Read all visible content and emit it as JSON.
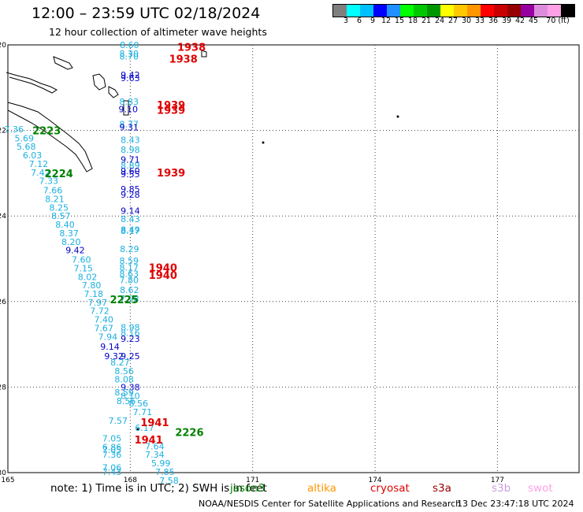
{
  "title": "12:00 – 23:59 UTC 02/18/2024",
  "subtitle": "12 hour collection of altimeter wave heights",
  "colorbar": {
    "colors": [
      "#7f7f7f",
      "#00ffff",
      "#00bfff",
      "#0000ff",
      "#1e90ff",
      "#00ff00",
      "#00c800",
      "#009600",
      "#ffff00",
      "#ffc800",
      "#ff9600",
      "#ff0000",
      "#c80000",
      "#960000",
      "#9600a0",
      "#dc8cdc",
      "#ffa0e6",
      "#000000"
    ],
    "labels": [
      "3",
      "6",
      "9",
      "12",
      "15",
      "18",
      "21",
      "24",
      "27",
      "30",
      "33",
      "36",
      "39",
      "42",
      "45",
      "70 (ft)"
    ]
  },
  "axes": {
    "lon_ticks": [
      "165",
      "168",
      "171",
      "174",
      "177"
    ],
    "lat_ticks": [
      "-20",
      "-22",
      "-24",
      "-26",
      "-28",
      "-30"
    ]
  },
  "tracks": [
    {
      "label": "1938",
      "color": "#e00000",
      "points": [
        {
          "lat": -20.0,
          "lon": 167.98,
          "val": "8.60",
          "color": "#1ab0e0"
        },
        {
          "lat": -20.2,
          "lon": 167.97,
          "val": "8.30",
          "color": "#1ab0e0"
        },
        {
          "lat": -20.27,
          "lon": 167.97,
          "val": "8.70",
          "color": "#1ab0e0"
        },
        {
          "lat": -20.7,
          "lon": 168.0,
          "val": "9.42",
          "color": "#0000c8"
        },
        {
          "lat": -20.77,
          "lon": 168.0,
          "val": "9.63",
          "color": "#0000c8"
        },
        {
          "lat": -21.33,
          "lon": 167.97,
          "val": "8.83",
          "color": "#1ab0e0"
        },
        {
          "lat": -21.5,
          "lon": 167.95,
          "val": "9.10",
          "color": "#0000c8"
        },
        {
          "lat": -21.85,
          "lon": 167.97,
          "val": "8.77",
          "color": "#1ab0e0"
        },
        {
          "lat": -21.92,
          "lon": 167.97,
          "val": "9.31",
          "color": "#0000c8"
        },
        {
          "lat": -22.22,
          "lon": 168.0,
          "val": "8.43",
          "color": "#1ab0e0"
        },
        {
          "lat": -22.45,
          "lon": 168.0,
          "val": "8.98",
          "color": "#1ab0e0"
        },
        {
          "lat": -22.68,
          "lon": 168.0,
          "val": "9.71",
          "color": "#0000c8"
        },
        {
          "lat": -22.82,
          "lon": 168.0,
          "val": "8.89",
          "color": "#1ab0e0"
        },
        {
          "lat": -22.95,
          "lon": 168.0,
          "val": "9.60",
          "color": "#0000c8"
        },
        {
          "lat": -23.02,
          "lon": 168.0,
          "val": "9.55",
          "color": "#0000c8"
        },
        {
          "lat": -23.37,
          "lon": 168.0,
          "val": "9.85",
          "color": "#0000c8"
        },
        {
          "lat": -23.5,
          "lon": 168.0,
          "val": "9.28",
          "color": "#0000c8"
        },
        {
          "lat": -23.88,
          "lon": 168.0,
          "val": "9.14",
          "color": "#0000c8"
        },
        {
          "lat": -24.07,
          "lon": 168.0,
          "val": "8.43",
          "color": "#1ab0e0"
        },
        {
          "lat": -24.32,
          "lon": 168.0,
          "val": "8.49",
          "color": "#1ab0e0"
        },
        {
          "lat": -24.35,
          "lon": 168.0,
          "val": "8.17",
          "color": "#1ab0e0"
        },
        {
          "lat": -24.77,
          "lon": 167.98,
          "val": "8.29",
          "color": "#1ab0e0"
        },
        {
          "lat": -25.05,
          "lon": 167.97,
          "val": "8.59",
          "color": "#1ab0e0"
        },
        {
          "lat": -25.2,
          "lon": 167.97,
          "val": "8.17",
          "color": "#1ab0e0"
        },
        {
          "lat": -25.35,
          "lon": 167.97,
          "val": "8.63",
          "color": "#1ab0e0"
        },
        {
          "lat": -25.5,
          "lon": 167.97,
          "val": "7.80",
          "color": "#1ab0e0"
        },
        {
          "lat": -25.73,
          "lon": 167.98,
          "val": "8.62",
          "color": "#1ab0e0"
        },
        {
          "lat": -25.93,
          "lon": 167.98,
          "val": "7.98",
          "color": "#1ab0e0"
        }
      ]
    },
    {
      "label": "1939",
      "color": "#e00000",
      "points": []
    },
    {
      "label": "2223",
      "color": "#008000",
      "points": [
        {
          "lat": -21.97,
          "lon": 165.15,
          "val": "7.36",
          "color": "#1ab0e0"
        },
        {
          "lat": -22.18,
          "lon": 165.4,
          "val": "5.69",
          "color": "#1ab0e0"
        },
        {
          "lat": -22.38,
          "lon": 165.45,
          "val": "5.68",
          "color": "#1ab0e0"
        },
        {
          "lat": -22.58,
          "lon": 165.6,
          "val": "6.03",
          "color": "#1ab0e0"
        },
        {
          "lat": -22.78,
          "lon": 165.75,
          "val": "7.12",
          "color": "#1ab0e0"
        },
        {
          "lat": -22.98,
          "lon": 165.8,
          "val": "7.42",
          "color": "#1ab0e0"
        },
        {
          "lat": -23.18,
          "lon": 166.0,
          "val": "7.33",
          "color": "#1ab0e0"
        },
        {
          "lat": -23.4,
          "lon": 166.1,
          "val": "7.66",
          "color": "#1ab0e0"
        },
        {
          "lat": -23.6,
          "lon": 166.15,
          "val": "8.21",
          "color": "#1ab0e0"
        },
        {
          "lat": -23.8,
          "lon": 166.25,
          "val": "8.25",
          "color": "#1ab0e0"
        },
        {
          "lat": -24.0,
          "lon": 166.3,
          "val": "8.57",
          "color": "#1ab0e0"
        },
        {
          "lat": -24.2,
          "lon": 166.4,
          "val": "8.40",
          "color": "#1ab0e0"
        },
        {
          "lat": -24.4,
          "lon": 166.5,
          "val": "8.37",
          "color": "#1ab0e0"
        },
        {
          "lat": -24.6,
          "lon": 166.55,
          "val": "8.20",
          "color": "#1ab0e0"
        },
        {
          "lat": -24.8,
          "lon": 166.65,
          "val": "9.42",
          "color": "#0000c8"
        },
        {
          "lat": -25.02,
          "lon": 166.8,
          "val": "7.60",
          "color": "#1ab0e0"
        },
        {
          "lat": -25.22,
          "lon": 166.85,
          "val": "7.15",
          "color": "#1ab0e0"
        },
        {
          "lat": -25.42,
          "lon": 166.95,
          "val": "8.02",
          "color": "#1ab0e0"
        },
        {
          "lat": -25.62,
          "lon": 167.05,
          "val": "7.80",
          "color": "#1ab0e0"
        },
        {
          "lat": -25.82,
          "lon": 167.1,
          "val": "7.18",
          "color": "#1ab0e0"
        },
        {
          "lat": -26.02,
          "lon": 167.2,
          "val": "7.97",
          "color": "#1ab0e0"
        },
        {
          "lat": -26.22,
          "lon": 167.25,
          "val": "7.72",
          "color": "#1ab0e0"
        },
        {
          "lat": -26.42,
          "lon": 167.35,
          "val": "7.40",
          "color": "#1ab0e0"
        },
        {
          "lat": -26.62,
          "lon": 167.35,
          "val": "7.67",
          "color": "#1ab0e0"
        },
        {
          "lat": -26.82,
          "lon": 167.45,
          "val": "7.94",
          "color": "#1ab0e0"
        }
      ]
    },
    {
      "label": "2224",
      "color": "#008000",
      "points": []
    },
    {
      "label": "2225",
      "color": "#008000",
      "points": [
        {
          "lat": -26.6,
          "lon": 168.0,
          "val": "8.98",
          "color": "#1ab0e0"
        },
        {
          "lat": -26.73,
          "lon": 168.0,
          "val": "8.16",
          "color": "#1ab0e0"
        },
        {
          "lat": -26.87,
          "lon": 168.0,
          "val": "9.23",
          "color": "#0000c8"
        },
        {
          "lat": -27.05,
          "lon": 167.5,
          "val": "9.14",
          "color": "#0000c8"
        },
        {
          "lat": -27.27,
          "lon": 167.6,
          "val": "9.32",
          "color": "#0000c8"
        },
        {
          "lat": -27.27,
          "lon": 168.0,
          "val": "9.25",
          "color": "#0000c8"
        },
        {
          "lat": -27.42,
          "lon": 167.75,
          "val": "8.27",
          "color": "#1ab0e0"
        },
        {
          "lat": -27.62,
          "lon": 167.85,
          "val": "8.56",
          "color": "#1ab0e0"
        },
        {
          "lat": -27.82,
          "lon": 167.85,
          "val": "8.08",
          "color": "#1ab0e0"
        },
        {
          "lat": -28.0,
          "lon": 168.0,
          "val": "9.38",
          "color": "#0000c8"
        },
        {
          "lat": -28.12,
          "lon": 167.85,
          "val": "8.59",
          "color": "#1ab0e0"
        },
        {
          "lat": -28.2,
          "lon": 168.0,
          "val": "8.10",
          "color": "#1ab0e0"
        },
        {
          "lat": -28.32,
          "lon": 167.9,
          "val": "8.56",
          "color": "#1ab0e0"
        },
        {
          "lat": -28.38,
          "lon": 168.2,
          "val": "8.56",
          "color": "#1ab0e0"
        },
        {
          "lat": -28.58,
          "lon": 168.3,
          "val": "7.71",
          "color": "#1ab0e0"
        }
      ]
    },
    {
      "label": "1940",
      "color": "#e00000",
      "points": []
    },
    {
      "label": "1941",
      "color": "#e00000",
      "points": [
        {
          "lat": -28.78,
          "lon": 167.7,
          "val": "7.57",
          "color": "#1ab0e0"
        },
        {
          "lat": -28.95,
          "lon": 168.35,
          "val": "6.17",
          "color": "#1ab0e0"
        },
        {
          "lat": -29.2,
          "lon": 167.55,
          "val": "7.05",
          "color": "#1ab0e0"
        },
        {
          "lat": -29.4,
          "lon": 167.55,
          "val": "6.86",
          "color": "#1ab0e0"
        },
        {
          "lat": -29.47,
          "lon": 167.55,
          "val": "7.05",
          "color": "#1ab0e0"
        },
        {
          "lat": -29.58,
          "lon": 167.55,
          "val": "7.36",
          "color": "#1ab0e0"
        },
        {
          "lat": -29.88,
          "lon": 167.55,
          "val": "7.06",
          "color": "#1ab0e0"
        },
        {
          "lat": -29.98,
          "lon": 167.55,
          "val": "7.43",
          "color": "#1ab0e0"
        }
      ]
    },
    {
      "label": "2226",
      "color": "#008000",
      "points": [
        {
          "lat": -29.38,
          "lon": 168.6,
          "val": "7.64",
          "color": "#1ab0e0"
        },
        {
          "lat": -29.58,
          "lon": 168.6,
          "val": "7.34",
          "color": "#1ab0e0"
        },
        {
          "lat": -29.78,
          "lon": 168.75,
          "val": "5.99",
          "color": "#1ab0e0"
        },
        {
          "lat": -29.98,
          "lon": 168.85,
          "val": "7.85",
          "color": "#1ab0e0"
        },
        {
          "lat": -30.18,
          "lon": 168.95,
          "val": "7.58",
          "color": "#1ab0e0"
        }
      ]
    }
  ],
  "pass_labels": [
    {
      "text": "1938",
      "lat": -20.05,
      "lon": 169.5,
      "color": "#e00000"
    },
    {
      "text": "1938",
      "lat": -20.32,
      "lon": 169.3,
      "color": "#e00000"
    },
    {
      "text": "1939",
      "lat": -21.4,
      "lon": 169.0,
      "color": "#e00000"
    },
    {
      "text": "1939",
      "lat": -21.52,
      "lon": 169.0,
      "color": "#e00000"
    },
    {
      "text": "1939",
      "lat": -22.98,
      "lon": 169.0,
      "color": "#e00000"
    },
    {
      "text": "1940",
      "lat": -25.2,
      "lon": 168.8,
      "color": "#e00000"
    },
    {
      "text": "1940",
      "lat": -25.38,
      "lon": 168.8,
      "color": "#e00000"
    },
    {
      "text": "1941",
      "lat": -28.82,
      "lon": 168.6,
      "color": "#e00000"
    },
    {
      "text": "1941",
      "lat": -29.23,
      "lon": 168.45,
      "color": "#e00000"
    },
    {
      "text": "2223",
      "lat": -22.0,
      "lon": 165.95,
      "color": "#008000"
    },
    {
      "text": "2224",
      "lat": -23.0,
      "lon": 166.25,
      "color": "#008000"
    },
    {
      "text": "2225",
      "lat": -25.95,
      "lon": 167.85,
      "color": "#008000"
    },
    {
      "text": "2226",
      "lat": -29.05,
      "lon": 169.45,
      "color": "#008000"
    }
  ],
  "note": "note:  1) Time is in UTC; 2) SWH is in feet",
  "legend": [
    {
      "name": "jason3",
      "color": "#008000"
    },
    {
      "name": "altika",
      "color": "#ff9600"
    },
    {
      "name": "cryosat",
      "color": "#e00000"
    },
    {
      "name": "s3a",
      "color": "#960000"
    },
    {
      "name": "s3b",
      "color": "#c8a0dc"
    },
    {
      "name": "swot",
      "color": "#ffa0e6"
    }
  ],
  "credit": "NOAA/NESDIS Center for Satellite Applications and Research",
  "timestamp": "13 Dec 23:47:18 UTC 2024"
}
